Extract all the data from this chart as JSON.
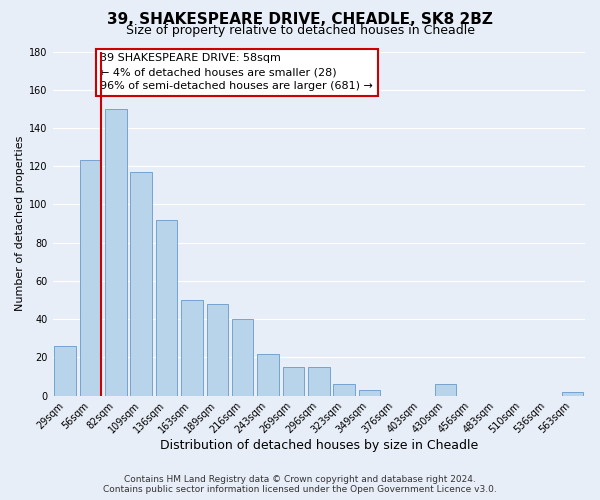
{
  "title": "39, SHAKESPEARE DRIVE, CHEADLE, SK8 2BZ",
  "subtitle": "Size of property relative to detached houses in Cheadle",
  "xlabel": "Distribution of detached houses by size in Cheadle",
  "ylabel": "Number of detached properties",
  "bar_labels": [
    "29sqm",
    "56sqm",
    "82sqm",
    "109sqm",
    "136sqm",
    "163sqm",
    "189sqm",
    "216sqm",
    "243sqm",
    "269sqm",
    "296sqm",
    "323sqm",
    "349sqm",
    "376sqm",
    "403sqm",
    "430sqm",
    "456sqm",
    "483sqm",
    "510sqm",
    "536sqm",
    "563sqm"
  ],
  "bar_values": [
    26,
    123,
    150,
    117,
    92,
    50,
    48,
    40,
    22,
    15,
    15,
    6,
    3,
    0,
    0,
    6,
    0,
    0,
    0,
    0,
    2
  ],
  "bar_color": "#b8d4ea",
  "bar_edge_color": "#6699cc",
  "redline_x": 1,
  "annotation_line1": "39 SHAKESPEARE DRIVE: 58sqm",
  "annotation_line2": "← 4% of detached houses are smaller (28)",
  "annotation_line3": "96% of semi-detached houses are larger (681) →",
  "annotation_box_color": "#ffffff",
  "annotation_box_edge": "#cc0000",
  "redline_color": "#cc0000",
  "ylim": [
    0,
    180
  ],
  "yticks": [
    0,
    20,
    40,
    60,
    80,
    100,
    120,
    140,
    160,
    180
  ],
  "footer1": "Contains HM Land Registry data © Crown copyright and database right 2024.",
  "footer2": "Contains public sector information licensed under the Open Government Licence v3.0.",
  "background_color": "#e8eef8",
  "plot_bg_color": "#e8eef8",
  "grid_color": "#ffffff",
  "title_fontsize": 11,
  "subtitle_fontsize": 9,
  "xlabel_fontsize": 9,
  "ylabel_fontsize": 8,
  "tick_fontsize": 7,
  "annotation_fontsize": 8,
  "footer_fontsize": 6.5
}
